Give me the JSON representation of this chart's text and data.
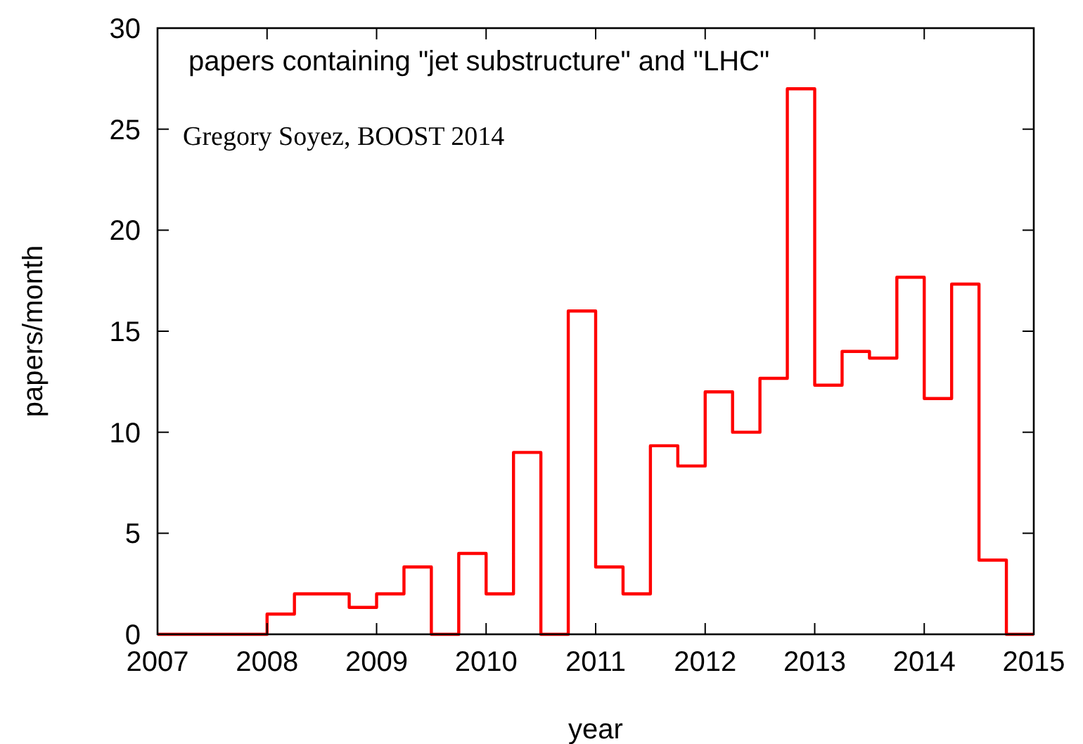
{
  "chart_data": {
    "type": "histogram",
    "title": "papers containing \"jet substructure\" and \"LHC\"",
    "annotations": [
      "Gregory Soyez, BOOST 2014"
    ],
    "xlabel": "year",
    "ylabel": "papers/month",
    "color": "#ff0000",
    "bins": [
      2007,
      2007.25,
      2007.5,
      2007.75,
      2008,
      2008.25,
      2008.5,
      2008.75,
      2009,
      2009.25,
      2009.5,
      2009.75,
      2010,
      2010.25,
      2010.5,
      2010.75,
      2011,
      2011.25,
      2011.5,
      2011.75,
      2012,
      2012.25,
      2012.5,
      2012.75,
      2013,
      2013.25,
      2013.5,
      2013.75,
      2014,
      2014.25,
      2014.5,
      2014.75,
      2015
    ],
    "values": [
      0,
      0,
      0,
      0,
      1,
      2,
      2,
      1.33,
      2,
      3.33,
      0,
      4,
      2,
      9,
      0,
      16,
      3.33,
      2,
      9.33,
      8.33,
      12,
      10,
      12.67,
      27,
      12.33,
      14,
      13.67,
      17.67,
      11.67,
      17.33,
      3.67,
      0
    ],
    "xlim": [
      2007,
      2015
    ],
    "xticks": [
      2007,
      2008,
      2009,
      2010,
      2011,
      2012,
      2013,
      2014,
      2015
    ],
    "ylim": [
      0,
      30
    ],
    "yticks": [
      0,
      5,
      10,
      15,
      20,
      25,
      30
    ],
    "grid": false
  }
}
